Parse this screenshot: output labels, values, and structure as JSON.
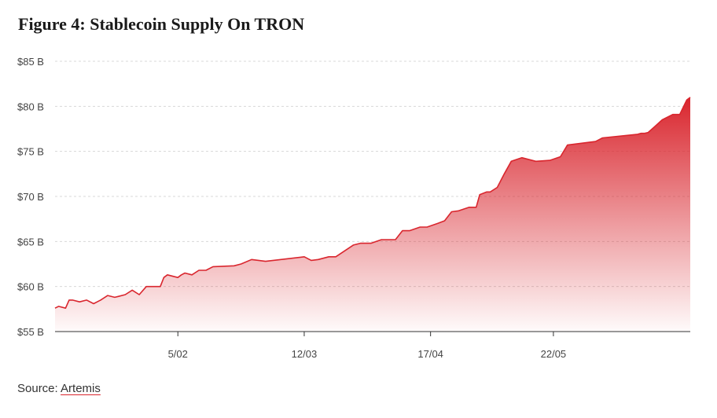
{
  "title": "Figure 4: Stablecoin Supply On TRON",
  "source": {
    "prefix": "Source: ",
    "link": "Artemis"
  },
  "colors": {
    "accent": "#d9262e",
    "grid": "#d8d8d8",
    "axis": "#333333"
  },
  "chart_data": {
    "type": "area",
    "title": "Figure 4: Stablecoin Supply On TRON",
    "xlabel": "",
    "ylabel": "",
    "ylim": [
      55,
      85
    ],
    "y_ticks": [
      55,
      60,
      65,
      70,
      75,
      80,
      85
    ],
    "y_tick_labels": [
      "$55 B",
      "$60 B",
      "$65 B",
      "$70 B",
      "$75 B",
      "$80 B",
      "$85 B"
    ],
    "x_ticks": [
      "2024-02-05",
      "2024-03-12",
      "2024-04-17",
      "2024-05-22"
    ],
    "x_tick_labels": [
      "5/02",
      "12/03",
      "17/04",
      "22/05"
    ],
    "x_range": [
      "2024-01-01",
      "2024-06-30"
    ],
    "grid": true,
    "legend": "none",
    "series": [
      {
        "x": [
          "2024-01-01",
          "2024-01-02",
          "2024-01-04",
          "2024-01-05",
          "2024-01-06",
          "2024-01-08",
          "2024-01-10",
          "2024-01-12",
          "2024-01-14",
          "2024-01-16",
          "2024-01-18",
          "2024-01-19",
          "2024-01-21",
          "2024-01-23",
          "2024-01-25",
          "2024-01-27",
          "2024-01-29",
          "2024-01-31",
          "2024-02-01",
          "2024-02-02",
          "2024-02-05",
          "2024-02-06",
          "2024-02-07",
          "2024-02-09",
          "2024-02-11",
          "2024-02-13",
          "2024-02-15",
          "2024-02-21",
          "2024-02-23",
          "2024-02-26",
          "2024-03-01",
          "2024-03-12",
          "2024-03-14",
          "2024-03-16",
          "2024-03-19",
          "2024-03-21",
          "2024-03-26",
          "2024-03-28",
          "2024-03-31",
          "2024-04-03",
          "2024-04-04",
          "2024-04-07",
          "2024-04-09",
          "2024-04-11",
          "2024-04-14",
          "2024-04-16",
          "2024-04-19",
          "2024-04-21",
          "2024-04-23",
          "2024-04-25",
          "2024-04-28",
          "2024-04-30",
          "2024-05-01",
          "2024-05-03",
          "2024-05-04",
          "2024-05-06",
          "2024-05-08",
          "2024-05-10",
          "2024-05-13",
          "2024-05-17",
          "2024-05-21",
          "2024-05-24",
          "2024-05-26",
          "2024-06-03",
          "2024-06-05",
          "2024-06-15",
          "2024-06-16",
          "2024-06-17",
          "2024-06-18",
          "2024-06-20",
          "2024-06-22",
          "2024-06-25",
          "2024-06-27",
          "2024-06-29",
          "2024-06-30"
        ],
        "values": [
          57.6,
          57.8,
          57.6,
          58.5,
          58.5,
          58.3,
          58.5,
          58.1,
          58.5,
          59.0,
          58.8,
          58.9,
          59.1,
          59.6,
          59.1,
          60.0,
          60.0,
          60.0,
          61.0,
          61.3,
          61.0,
          61.3,
          61.5,
          61.3,
          61.8,
          61.8,
          62.2,
          62.3,
          62.5,
          63.0,
          62.8,
          63.3,
          62.9,
          63.0,
          63.3,
          63.3,
          64.6,
          64.8,
          64.8,
          65.2,
          65.2,
          65.2,
          66.2,
          66.2,
          66.6,
          66.6,
          67.0,
          67.3,
          68.3,
          68.4,
          68.8,
          68.8,
          70.2,
          70.5,
          70.5,
          71.0,
          72.5,
          73.9,
          74.3,
          73.9,
          74.0,
          74.4,
          75.7,
          76.1,
          76.5,
          76.9,
          77.0,
          77.0,
          77.1,
          77.8,
          78.5,
          79.1,
          79.1,
          80.7,
          81.0
        ]
      }
    ]
  }
}
